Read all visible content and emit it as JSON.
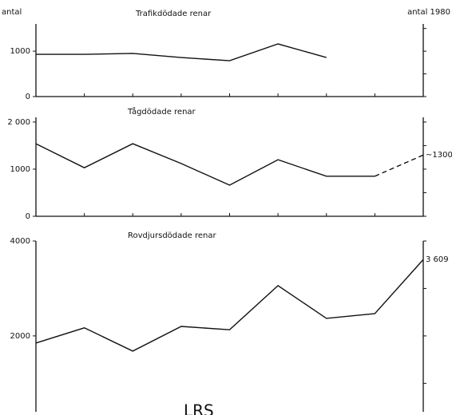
{
  "footer_text": "LRS",
  "chart_data": [
    {
      "type": "line",
      "title": "Trafikdödade renar",
      "y_label": "antal",
      "y2_label": "antal 1980",
      "categories": [
        null,
        null,
        null,
        null,
        null,
        null,
        null,
        null,
        null
      ],
      "values": [
        930,
        930,
        950,
        860,
        790,
        1160,
        860,
        null,
        null
      ],
      "ylim": [
        0,
        1600
      ],
      "yticks": [
        0,
        1000
      ],
      "minor_yticks": [
        500,
        1500
      ],
      "color": "#111111"
    },
    {
      "type": "line",
      "title": "Tågdödade renar",
      "categories": [
        null,
        null,
        null,
        null,
        null,
        null,
        null,
        null,
        null
      ],
      "values": [
        1540,
        1030,
        1540,
        1120,
        660,
        1200,
        850,
        850,
        1300
      ],
      "dashed_last_segment": true,
      "annotation": "~1300",
      "ylim": [
        0,
        2100
      ],
      "yticks": [
        0,
        1000,
        {
          "value": 2000,
          "label": "2 000"
        }
      ],
      "minor_yticks": [
        500,
        1500
      ],
      "color": "#111111"
    },
    {
      "type": "line",
      "title": "Rovdjursdödade renar",
      "categories": [
        null,
        null,
        null,
        null,
        null,
        null,
        null,
        null,
        null
      ],
      "values": [
        1850,
        2170,
        1680,
        2200,
        2130,
        3060,
        2370,
        2470,
        3609
      ],
      "annotation": "3 609",
      "ylim": [
        400,
        4000
      ],
      "yticks": [
        2000,
        4000
      ],
      "minor_yticks": [
        1000,
        3000
      ],
      "color": "#111111"
    }
  ]
}
